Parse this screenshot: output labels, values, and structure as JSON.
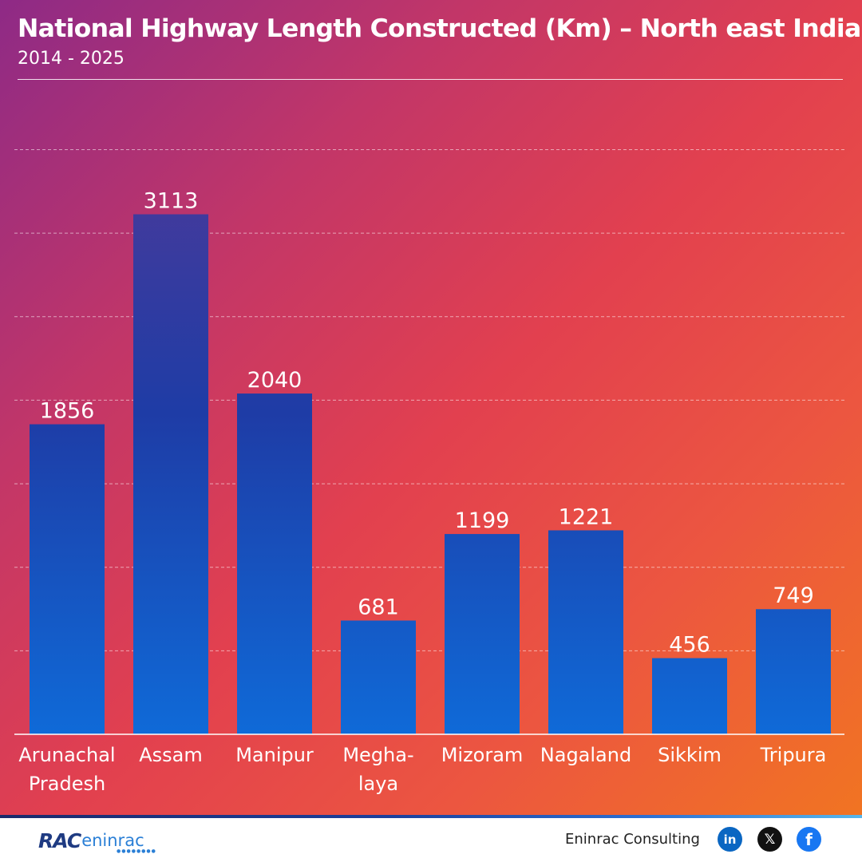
{
  "header": {
    "title": "National Highway Length Constructed (Km) – North east India",
    "subtitle": "2014 - 2025"
  },
  "chart_data": {
    "type": "bar",
    "categories": [
      [
        "Arunachal",
        "Pradesh"
      ],
      [
        "Assam"
      ],
      [
        "Manipur"
      ],
      [
        "Megha-",
        "laya"
      ],
      [
        "Mizoram"
      ],
      [
        "Nagaland"
      ],
      [
        "Sikkim"
      ],
      [
        "Tripura"
      ]
    ],
    "values": [
      1856,
      3113,
      2040,
      681,
      1199,
      1221,
      456,
      749
    ],
    "ylim": [
      0,
      3500
    ],
    "grid": true,
    "legend": "none",
    "colors": {
      "bar_top": "#4a3a9a",
      "bar_mid": "#1e3ca6",
      "bar_bottom": "#0f6ad8",
      "baseline": "#ffffff",
      "gridline": "#ffffff"
    }
  },
  "footer": {
    "logo_mark": "RAC",
    "logo_word": "eninrac",
    "company": "Eninrac Consulting",
    "social": [
      {
        "name": "linkedin-icon",
        "glyph": "in"
      },
      {
        "name": "x-icon",
        "glyph": "𝕏"
      },
      {
        "name": "facebook-icon",
        "glyph": "f"
      }
    ]
  }
}
